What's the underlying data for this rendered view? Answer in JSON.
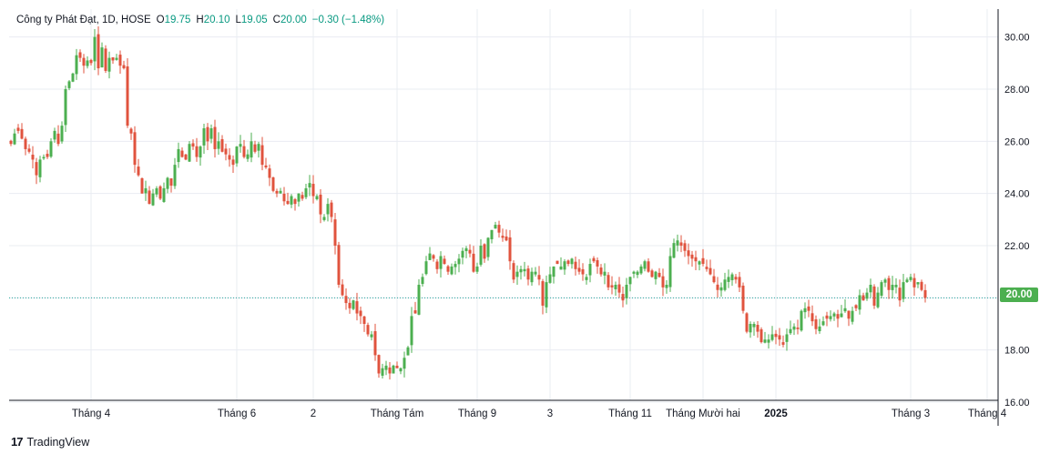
{
  "legend": {
    "title": "Công ty Phát Đạt, 1D, HOSE",
    "o_label": "O",
    "o_value": "19.75",
    "h_label": "H",
    "h_value": "20.10",
    "l_label": "L",
    "l_value": "19.05",
    "c_label": "C",
    "c_value": "20.00",
    "change": "−0.30 (−1.48%)"
  },
  "footer": {
    "logo": "17",
    "brand": "TradingView"
  },
  "colors": {
    "up": "#4caf50",
    "down": "#e0533e",
    "grid": "#e9ecf2",
    "axis_text": "#131722",
    "last_price_line": "#26a69a"
  },
  "chart_data": {
    "type": "candlestick",
    "title": "",
    "ylim": [
      16.0,
      31.0
    ],
    "y_ticks": [
      "30.00",
      "28.00",
      "26.00",
      "24.00",
      "22.00",
      "20.00",
      "18.00",
      "16.00"
    ],
    "y_tick_values": [
      30,
      28,
      26,
      24,
      22,
      20,
      18,
      16
    ],
    "x_ticks": [
      {
        "label": "Tháng 4",
        "index": 22
      },
      {
        "label": "Tháng 6",
        "index": 62
      },
      {
        "label": "2",
        "index": 83
      },
      {
        "label": "Tháng Tám",
        "index": 106
      },
      {
        "label": "Tháng 9",
        "index": 128
      },
      {
        "label": "3",
        "index": 148
      },
      {
        "label": "Tháng 11",
        "index": 170
      },
      {
        "label": "Tháng Mười hai",
        "index": 190
      },
      {
        "label": "2025",
        "index": 210
      },
      {
        "label": "Tháng 3",
        "index": 247
      },
      {
        "label": "Tháng 4",
        "index": 268
      }
    ],
    "last_price": "20.00",
    "last_price_value": 20.0,
    "close_series": [
      25.9,
      26.3,
      26.4,
      26.1,
      25.7,
      25.6,
      25.3,
      24.7,
      25.3,
      25.4,
      25.4,
      26.0,
      26.4,
      25.9,
      26.6,
      28.0,
      28.3,
      28.6,
      29.3,
      29.2,
      28.9,
      29.1,
      29.0,
      30.0,
      28.8,
      29.6,
      28.7,
      29.2,
      29.1,
      29.2,
      28.9,
      28.8,
      26.6,
      26.3,
      25.1,
      24.7,
      24.0,
      24.2,
      23.6,
      24.0,
      24.2,
      23.8,
      24.2,
      24.6,
      24.3,
      25.1,
      25.7,
      25.4,
      25.3,
      25.9,
      25.8,
      25.4,
      25.8,
      26.5,
      26.0,
      26.5,
      25.7,
      26.0,
      25.6,
      25.5,
      25.3,
      25.1,
      25.8,
      25.9,
      25.4,
      25.5,
      26.0,
      25.6,
      25.9,
      25.1,
      25.0,
      24.6,
      24.1,
      24.0,
      24.1,
      23.7,
      23.6,
      23.9,
      23.6,
      24.0,
      23.8,
      24.2,
      24.4,
      23.9,
      23.9,
      23.2,
      23.1,
      23.6,
      23.1,
      22.0,
      20.5,
      20.1,
      19.8,
      19.6,
      19.9,
      19.4,
      19.3,
      19.0,
      18.6,
      18.6,
      17.8,
      17.1,
      17.3,
      17.4,
      17.1,
      17.4,
      17.3,
      17.3,
      17.7,
      18.1,
      19.3,
      19.4,
      20.5,
      20.8,
      21.4,
      21.7,
      21.5,
      21.1,
      21.6,
      21.3,
      21.0,
      21.2,
      21.3,
      21.5,
      21.8,
      21.9,
      21.7,
      21.0,
      21.2,
      22.0,
      21.5,
      22.3,
      22.6,
      22.8,
      22.5,
      22.3,
      22.2,
      21.4,
      20.7,
      21.0,
      21.1,
      21.1,
      20.7,
      21.0,
      21.0,
      20.7,
      19.7,
      20.6,
      20.9,
      21.2,
      21.3,
      21.2,
      21.4,
      21.3,
      21.5,
      21.1,
      21.0,
      20.9,
      20.8,
      21.3,
      21.4,
      21.2,
      20.9,
      21.0,
      20.4,
      20.4,
      20.5,
      20.2,
      19.9,
      20.5,
      20.8,
      21.0,
      21.0,
      21.2,
      21.4,
      21.0,
      20.8,
      21.0,
      20.8,
      20.4,
      20.5,
      21.6,
      22.1,
      22.2,
      22.0,
      21.8,
      21.6,
      21.5,
      21.4,
      21.4,
      21.3,
      21.1,
      20.9,
      20.6,
      20.3,
      20.4,
      20.7,
      20.8,
      20.9,
      20.7,
      20.4,
      19.5,
      18.7,
      19.0,
      19.0,
      18.7,
      18.3,
      18.4,
      18.4,
      18.6,
      18.5,
      18.4,
      18.2,
      18.6,
      18.8,
      18.9,
      18.8,
      19.5,
      19.6,
      19.5,
      19.1,
      18.8,
      18.9,
      19.1,
      19.2,
      19.3,
      19.4,
      19.2,
      19.4,
      19.6,
      19.2,
      19.5,
      19.6,
      20.1,
      19.9,
      20.2,
      20.5,
      19.7,
      20.2,
      20.6,
      20.7,
      20.3,
      20.5,
      20.5,
      19.9,
      20.6,
      20.7,
      20.8,
      20.4,
      20.6,
      20.3,
      20.0
    ]
  }
}
